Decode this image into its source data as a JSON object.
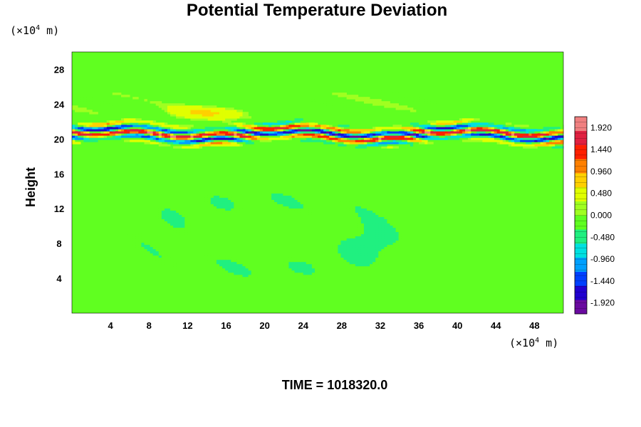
{
  "title": "Potential Temperature Deviation",
  "y_unit": {
    "base": "(×10",
    "exp": "4",
    "suffix": " m)"
  },
  "x_unit": {
    "base": "(×10",
    "exp": "4",
    "suffix": " m)"
  },
  "time_label": "TIME = 1018320.0",
  "chart_data": {
    "type": "heatmap",
    "title": "Potential Temperature Deviation",
    "ylabel": "Height",
    "xlabel": "",
    "xlim": [
      0,
      51
    ],
    "ylim": [
      0,
      30
    ],
    "x_ticks": [
      4,
      8,
      12,
      16,
      20,
      24,
      28,
      32,
      36,
      40,
      44,
      48
    ],
    "y_ticks": [
      4,
      8,
      12,
      16,
      20,
      24,
      28
    ],
    "colorbar": {
      "min": -2.16,
      "max": 2.16,
      "labels": [
        "1.920",
        "1.440",
        "0.960",
        "0.480",
        "0.000",
        "-0.480",
        "-0.960",
        "-1.440",
        "-1.920"
      ],
      "label_values": [
        1.92,
        1.44,
        0.96,
        0.48,
        0.0,
        -0.48,
        -0.96,
        -1.44,
        -1.92
      ],
      "colors": [
        "#6a0aa0",
        "#2000d0",
        "#0040ff",
        "#00a0ff",
        "#00e0e0",
        "#20f080",
        "#60ff20",
        "#a0ff20",
        "#e0ff00",
        "#ffd000",
        "#ff8000",
        "#ff2000",
        "#e02040",
        "#f08080"
      ]
    },
    "features": [
      {
        "name": "strong-oscillation-band",
        "y_range": [
          20,
          23
        ],
        "amplitude": 1.9
      },
      {
        "name": "upper-wave-layer",
        "y_range": [
          23,
          30
        ],
        "amplitude": 0.3
      },
      {
        "name": "lower-plume",
        "x_range": [
          7,
          32
        ],
        "y_range": [
          3,
          13
        ],
        "amplitude": -0.4
      }
    ]
  }
}
